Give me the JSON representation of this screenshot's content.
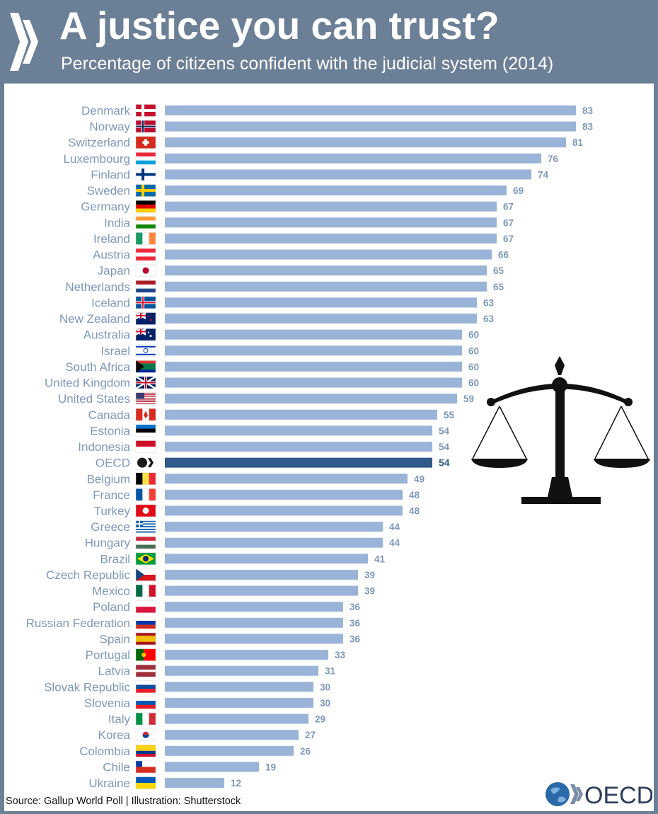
{
  "header": {
    "title": "A justice you can trust?",
    "subtitle": "Percentage of citizens confident with the judicial system (2014)"
  },
  "footer": {
    "source": "Source: Gallup World Poll | Illustration: Shutterstock",
    "logo_text": "OECD"
  },
  "colors": {
    "header_bg": "#6b7f97",
    "bar": "#9ab4d8",
    "bar_highlight": "#2f5a8a",
    "label": "#7f98b8"
  },
  "icons": [
    "oecd-chevron-icon",
    "flag-icon",
    "scales-of-justice-icon",
    "oecd-globe-icon"
  ],
  "chart_data": {
    "type": "bar",
    "orientation": "horizontal",
    "title": "A justice you can trust?",
    "subtitle": "Percentage of citizens confident with the judicial system (2014)",
    "xlabel": "",
    "ylabel": "",
    "xlim": [
      0,
      100
    ],
    "grid": false,
    "highlight": "OECD",
    "categories": [
      "Denmark",
      "Norway",
      "Switzerland",
      "Luxembourg",
      "Finland",
      "Sweden",
      "Germany",
      "India",
      "Ireland",
      "Austria",
      "Japan",
      "Netherlands",
      "Iceland",
      "New Zealand",
      "Australia",
      "Israel",
      "South Africa",
      "United Kingdom",
      "United States",
      "Canada",
      "Estonia",
      "Indonesia",
      "OECD",
      "Belgium",
      "France",
      "Turkey",
      "Greece",
      "Hungary",
      "Brazil",
      "Czech Republic",
      "Mexico",
      "Poland",
      "Russian Federation",
      "Spain",
      "Portugal",
      "Latvia",
      "Slovak Republic",
      "Slovenia",
      "Italy",
      "Korea",
      "Colombia",
      "Chile",
      "Ukraine"
    ],
    "values": [
      83,
      83,
      81,
      76,
      74,
      69,
      67,
      67,
      67,
      66,
      65,
      65,
      63,
      63,
      60,
      60,
      60,
      60,
      59,
      55,
      54,
      54,
      54,
      49,
      48,
      48,
      44,
      44,
      41,
      39,
      39,
      36,
      36,
      36,
      33,
      31,
      30,
      30,
      29,
      27,
      26,
      19,
      12
    ]
  }
}
